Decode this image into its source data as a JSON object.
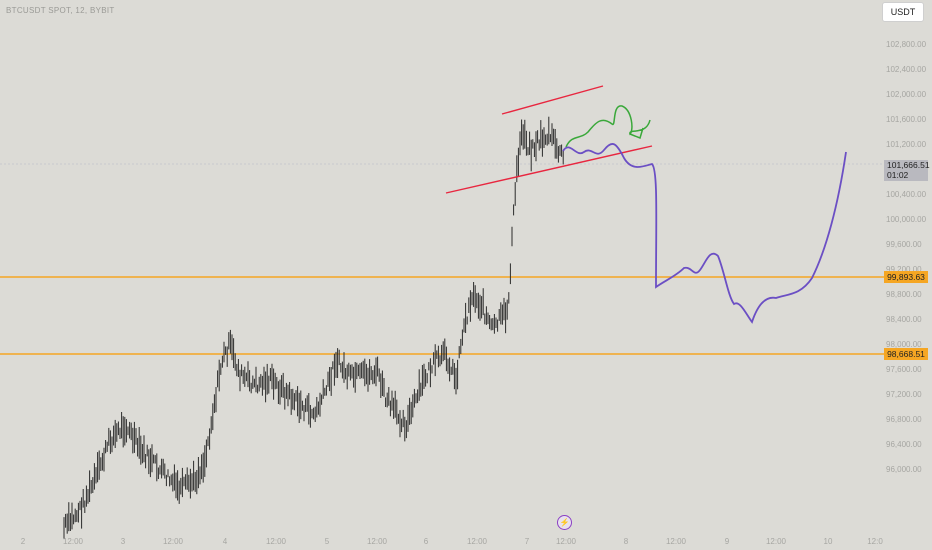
{
  "chart": {
    "symbol_title": "BTCUSDT SPOT, 12, BYBIT",
    "currency_button": "USDT",
    "price_axis": [
      "102,800.00",
      "102,400.00",
      "102,000.00",
      "101,600.00",
      "101,200.00",
      "100,800.00",
      "100,400.00",
      "100,000.00",
      "99,600.00",
      "99,200.00",
      "98,800.00",
      "98,400.00",
      "98,000.00",
      "97,600.00",
      "97,200.00",
      "96,800.00",
      "96,400.00",
      "96,000.00"
    ],
    "time_axis": [
      "2",
      "12:00",
      "3",
      "12:00",
      "4",
      "12:00",
      "5",
      "12:00",
      "6",
      "12:00",
      "7",
      "12:00",
      "8",
      "12:00",
      "9",
      "12:00",
      "10",
      "12:0"
    ],
    "current_price": "101,666.51",
    "countdown": "01:02",
    "resistance_level": "99,893.63",
    "support_level": "98,668.51",
    "colors": {
      "background": "#dcdbd6",
      "candles": "#2b2b2b",
      "horizontal_levels": "#f5a623",
      "channel_lines": "#e8263f",
      "projection_primary": "#6b4fc4",
      "projection_alt": "#3aa83a",
      "flash_icon": "#8b3fc4"
    },
    "icons": [
      "lightning-icon"
    ]
  }
}
